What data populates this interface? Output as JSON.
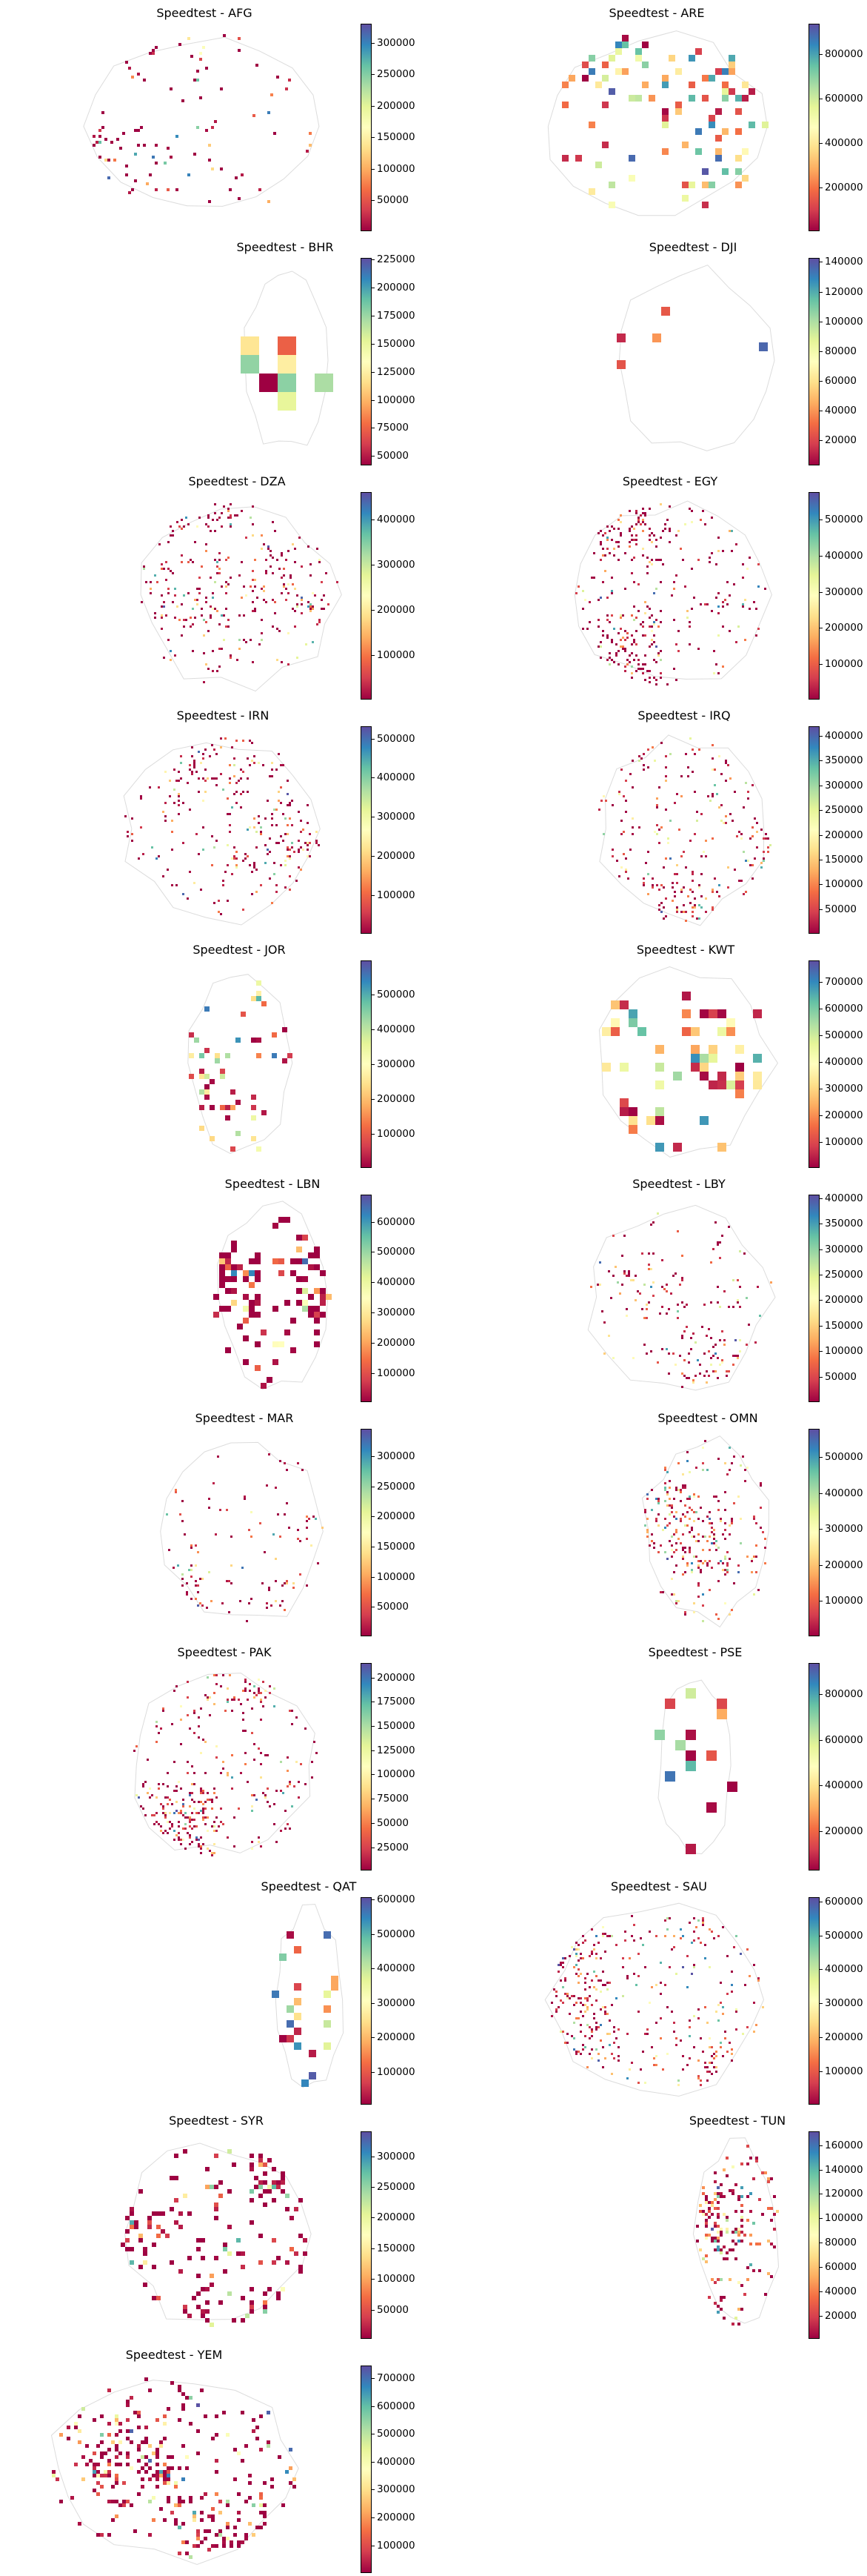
{
  "chart_data": {
    "type": "heatmap",
    "colormap": "Spectral",
    "layout": "2-column grid of country maps, each with its own vertical colorbar on the right",
    "panels": [
      {
        "title": "Speedtest - AFG",
        "country": "AFG",
        "colorbar": {
          "range": [
            1000,
            330000
          ],
          "ticks": [
            50000,
            100000,
            150000,
            200000,
            250000,
            300000
          ]
        }
      },
      {
        "title": "Speedtest - ARE",
        "country": "ARE",
        "colorbar": {
          "range": [
            4500,
            937000
          ],
          "ticks": [
            200000,
            400000,
            600000,
            800000
          ]
        }
      },
      {
        "title": "Speedtest - BHR",
        "country": "BHR",
        "colorbar": {
          "range": [
            41700,
            226200
          ],
          "ticks": [
            50000,
            75000,
            100000,
            125000,
            150000,
            175000,
            200000,
            225000
          ]
        }
      },
      {
        "title": "Speedtest - DJI",
        "country": "DJI",
        "colorbar": {
          "range": [
            3100,
            142700
          ],
          "ticks": [
            20000,
            40000,
            60000,
            80000,
            100000,
            120000,
            140000
          ]
        }
      },
      {
        "title": "Speedtest - DZA",
        "country": "DZA",
        "colorbar": {
          "range": [
            2000,
            461000
          ],
          "ticks": [
            100000,
            200000,
            300000,
            400000
          ]
        }
      },
      {
        "title": "Speedtest - EGY",
        "country": "EGY",
        "colorbar": {
          "range": [
            1000,
            577000
          ],
          "ticks": [
            100000,
            200000,
            300000,
            400000,
            500000
          ]
        }
      },
      {
        "title": "Speedtest - IRN",
        "country": "IRN",
        "colorbar": {
          "range": [
            1000,
            531500
          ],
          "ticks": [
            100000,
            200000,
            300000,
            400000,
            500000
          ]
        }
      },
      {
        "title": "Speedtest - IRQ",
        "country": "IRQ",
        "colorbar": {
          "range": [
            500,
            419000
          ],
          "ticks": [
            50000,
            100000,
            150000,
            200000,
            250000,
            300000,
            350000,
            400000
          ]
        }
      },
      {
        "title": "Speedtest - JOR",
        "country": "JOR",
        "colorbar": {
          "range": [
            3200,
            598500
          ],
          "ticks": [
            100000,
            200000,
            300000,
            400000,
            500000
          ]
        }
      },
      {
        "title": "Speedtest - KWT",
        "country": "KWT",
        "colorbar": {
          "range": [
            4200,
            781000
          ],
          "ticks": [
            100000,
            200000,
            300000,
            400000,
            500000,
            600000,
            700000
          ]
        }
      },
      {
        "title": "Speedtest - LBN",
        "country": "LBN",
        "colorbar": {
          "range": [
            3600,
            689500
          ],
          "ticks": [
            100000,
            200000,
            300000,
            400000,
            500000,
            600000
          ]
        }
      },
      {
        "title": "Speedtest - LBY",
        "country": "LBY",
        "colorbar": {
          "range": [
            200,
            407000
          ],
          "ticks": [
            50000,
            100000,
            150000,
            200000,
            250000,
            300000,
            350000,
            400000
          ]
        }
      },
      {
        "title": "Speedtest - MAR",
        "country": "MAR",
        "colorbar": {
          "range": [
            1000,
            345500
          ],
          "ticks": [
            50000,
            100000,
            150000,
            200000,
            250000,
            300000
          ]
        }
      },
      {
        "title": "Speedtest - OMN",
        "country": "OMN",
        "colorbar": {
          "range": [
            1000,
            579000
          ],
          "ticks": [
            100000,
            200000,
            300000,
            400000,
            500000
          ]
        }
      },
      {
        "title": "Speedtest - PAK",
        "country": "PAK",
        "colorbar": {
          "range": [
            1100,
            214900
          ],
          "ticks": [
            25000,
            50000,
            75000,
            100000,
            125000,
            150000,
            175000,
            200000
          ]
        }
      },
      {
        "title": "Speedtest - PSE",
        "country": "PSE",
        "colorbar": {
          "range": [
            28500,
            936000
          ],
          "ticks": [
            200000,
            400000,
            600000,
            800000
          ]
        }
      },
      {
        "title": "Speedtest - QAT",
        "country": "QAT",
        "colorbar": {
          "range": [
            4200,
            607000
          ],
          "ticks": [
            100000,
            200000,
            300000,
            400000,
            500000,
            600000
          ]
        }
      },
      {
        "title": "Speedtest - SAU",
        "country": "SAU",
        "colorbar": {
          "range": [
            500,
            613300
          ],
          "ticks": [
            100000,
            200000,
            300000,
            400000,
            500000,
            600000
          ]
        }
      },
      {
        "title": "Speedtest - SYR",
        "country": "SYR",
        "colorbar": {
          "range": [
            2300,
            340800
          ],
          "ticks": [
            50000,
            100000,
            150000,
            200000,
            250000,
            300000
          ]
        }
      },
      {
        "title": "Speedtest - TUN",
        "country": "TUN",
        "colorbar": {
          "range": [
            900,
            171400
          ],
          "ticks": [
            20000,
            40000,
            60000,
            80000,
            100000,
            120000,
            140000,
            160000
          ]
        }
      },
      {
        "title": "Speedtest - YEM",
        "country": "YEM",
        "colorbar": {
          "range": [
            500,
            745000
          ],
          "ticks": [
            100000,
            200000,
            300000,
            400000,
            500000,
            600000,
            700000
          ]
        }
      }
    ]
  }
}
